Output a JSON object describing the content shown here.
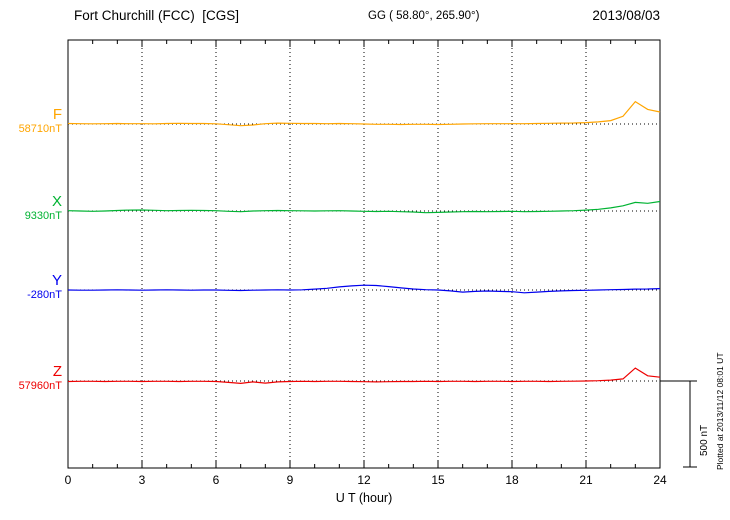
{
  "header": {
    "station": "Fort Churchill (FCC)  [CGS]",
    "coords": "GG ( 58.80°, 265.90°)",
    "date": "2013/08/03"
  },
  "axis": {
    "xlabel": "U T (hour)"
  },
  "scale_bar": {
    "label": "500 nT"
  },
  "footer_note": "Plotted at 2013/11/12 08:01 UT",
  "components": [
    {
      "name": "F",
      "value_label": "58710nT",
      "color": "#FFA500"
    },
    {
      "name": "X",
      "value_label": "9330nT",
      "color": "#00B332"
    },
    {
      "name": "Y",
      "value_label": "-280nT",
      "color": "#0000EE"
    },
    {
      "name": "Z",
      "value_label": "57960nT",
      "color": "#EE0000"
    }
  ],
  "chart_data": {
    "type": "line",
    "title": "Fort Churchill (FCC) [CGS] magnetogram 2013/08/03",
    "xlabel": "U T (hour)",
    "xlim": [
      0,
      24
    ],
    "xticks": [
      0,
      3,
      6,
      9,
      12,
      15,
      18,
      21,
      24
    ],
    "grid": "dotted-vertical-at-major-ticks",
    "legend": "left-margin-color-coded",
    "scale": {
      "nT": 500
    },
    "x_hours": [
      0,
      0.5,
      1,
      1.5,
      2,
      2.5,
      3,
      3.5,
      4,
      4.5,
      5,
      5.5,
      6,
      6.5,
      7,
      7.5,
      8,
      8.5,
      9,
      9.5,
      10,
      10.5,
      11,
      11.5,
      12,
      12.5,
      13,
      13.5,
      14,
      14.5,
      15,
      15.5,
      16,
      16.5,
      17,
      17.5,
      18,
      18.5,
      19,
      19.5,
      20,
      20.5,
      21,
      21.5,
      22,
      22.5,
      23,
      23.5,
      24
    ],
    "series": [
      {
        "name": "F",
        "base_nT": 58710,
        "color": "#FFA500",
        "offsets_nT": [
          3,
          2,
          1,
          2,
          3,
          2,
          2,
          1,
          3,
          4,
          3,
          3,
          1,
          -4,
          -10,
          -6,
          2,
          5,
          4,
          3,
          3,
          2,
          3,
          2,
          0,
          -2,
          -2,
          -3,
          -2,
          -2,
          -3,
          -2,
          0,
          1,
          2,
          2,
          2,
          2,
          3,
          4,
          5,
          6,
          8,
          12,
          20,
          45,
          130,
          85,
          70
        ]
      },
      {
        "name": "X",
        "base_nT": 9330,
        "color": "#00B332",
        "offsets_nT": [
          2,
          0,
          -2,
          0,
          3,
          5,
          6,
          4,
          2,
          3,
          4,
          3,
          2,
          -2,
          -4,
          0,
          2,
          3,
          2,
          1,
          0,
          1,
          2,
          0,
          -2,
          -3,
          -2,
          -4,
          -6,
          -10,
          -8,
          -6,
          -4,
          -3,
          -4,
          -3,
          -2,
          -4,
          -3,
          -2,
          0,
          2,
          5,
          10,
          18,
          30,
          50,
          45,
          55
        ]
      },
      {
        "name": "Y",
        "base_nT": -280,
        "color": "#0000EE",
        "offsets_nT": [
          0,
          -1,
          -1,
          0,
          1,
          0,
          -1,
          0,
          1,
          0,
          -1,
          0,
          0,
          -2,
          -3,
          -1,
          0,
          1,
          0,
          1,
          5,
          10,
          18,
          24,
          28,
          26,
          20,
          12,
          6,
          2,
          0,
          -5,
          -12,
          -8,
          -6,
          -8,
          -10,
          -16,
          -12,
          -8,
          -5,
          -3,
          -2,
          0,
          2,
          3,
          5,
          6,
          8
        ]
      },
      {
        "name": "Z",
        "base_nT": 57960,
        "color": "#EE0000",
        "offsets_nT": [
          -3,
          -2,
          -2,
          -3,
          -2,
          -2,
          -3,
          -2,
          -2,
          -3,
          -2,
          -2,
          -3,
          -8,
          -14,
          -5,
          -12,
          -5,
          -3,
          -2,
          -3,
          -2,
          -2,
          -3,
          -4,
          -5,
          -4,
          -3,
          -3,
          -2,
          -3,
          -2,
          -2,
          -3,
          -2,
          -2,
          -3,
          -2,
          -2,
          -3,
          -2,
          -1,
          0,
          2,
          5,
          12,
          75,
          30,
          22
        ]
      }
    ]
  }
}
